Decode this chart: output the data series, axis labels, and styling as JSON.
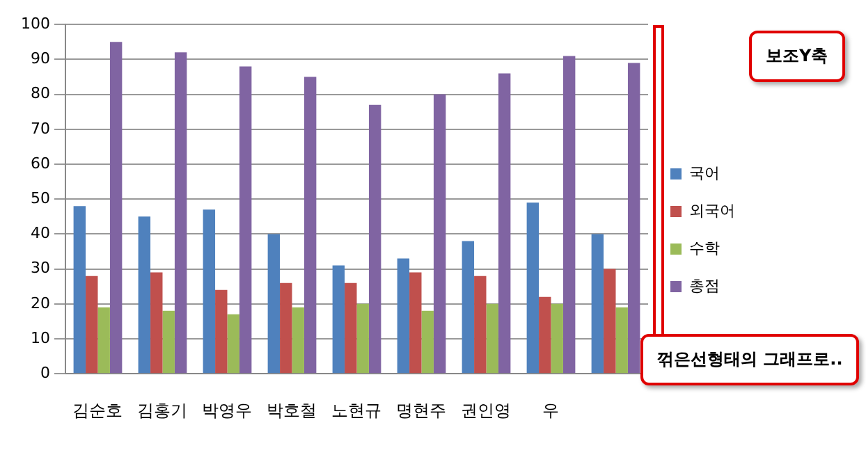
{
  "chart_data": {
    "type": "bar",
    "categories": [
      "김순호",
      "김홍기",
      "박영우",
      "박호철",
      "노현규",
      "명현주",
      "권인영",
      "우",
      null
    ],
    "series": [
      {
        "name": "국어",
        "color": "#4f81bd",
        "values": [
          48,
          45,
          47,
          40,
          31,
          33,
          38,
          49,
          40
        ]
      },
      {
        "name": "외국어",
        "color": "#c0504d",
        "values": [
          28,
          29,
          24,
          26,
          26,
          29,
          28,
          22,
          30
        ]
      },
      {
        "name": "수학",
        "color": "#9bbb59",
        "values": [
          19,
          18,
          17,
          19,
          20,
          18,
          20,
          20,
          19
        ]
      },
      {
        "name": "총점",
        "color": "#8064a2",
        "values": [
          95,
          92,
          88,
          85,
          77,
          80,
          86,
          91,
          89
        ]
      }
    ],
    "ylim": [
      0,
      100
    ],
    "yticks": [
      0,
      10,
      20,
      30,
      40,
      50,
      60,
      70,
      80,
      90,
      100
    ],
    "grid": "y",
    "legend": "right",
    "annotations": [
      "보조Y축",
      "꺾은선형태의 그래프로.."
    ]
  }
}
